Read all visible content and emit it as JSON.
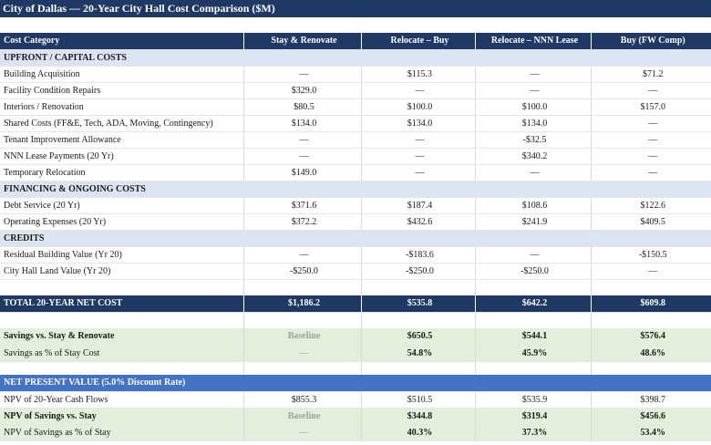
{
  "title": "City of Dallas — 20-Year City Hall Cost Comparison ($M)",
  "columns": [
    "Cost Category",
    "Stay & Renovate",
    "Relocate – Buy",
    "Relocate – NNN Lease",
    "Buy (FW Comp)"
  ],
  "sections": {
    "upfront": "UPFRONT / CAPITAL COSTS",
    "financing": "FINANCING & ONGOING COSTS",
    "credits": "CREDITS",
    "npv": "NET PRESENT VALUE (5.0% Discount Rate)"
  },
  "upfront_rows": [
    {
      "label": "Building Acquisition",
      "v": [
        "—",
        "$115.3",
        "—",
        "$71.2"
      ]
    },
    {
      "label": "Facility Condition Repairs",
      "v": [
        "$329.0",
        "—",
        "—",
        "—"
      ]
    },
    {
      "label": "Interiors / Renovation",
      "v": [
        "$80.5",
        "$100.0",
        "$100.0",
        "$157.0"
      ]
    },
    {
      "label": "Shared Costs (FF&E, Tech, ADA, Moving, Contingency)",
      "v": [
        "$134.0",
        "$134.0",
        "$134.0",
        "—"
      ]
    },
    {
      "label": "Tenant Improvement Allowance",
      "v": [
        "—",
        "—",
        "-$32.5",
        "—"
      ]
    },
    {
      "label": "NNN Lease Payments (20 Yr)",
      "v": [
        "—",
        "—",
        "$340.2",
        "—"
      ]
    },
    {
      "label": "Temporary Relocation",
      "v": [
        "$149.0",
        "—",
        "—",
        "—"
      ]
    }
  ],
  "financing_rows": [
    {
      "label": "Debt Service (20 Yr)",
      "v": [
        "$371.6",
        "$187.4",
        "$108.6",
        "$122.6"
      ]
    },
    {
      "label": "Operating Expenses (20 Yr)",
      "v": [
        "$372.2",
        "$432.6",
        "$241.9",
        "$409.5"
      ]
    }
  ],
  "credit_rows": [
    {
      "label": "Residual Building Value (Yr 20)",
      "v": [
        "—",
        "-$183.6",
        "—",
        "-$150.5"
      ]
    },
    {
      "label": "City Hall Land Value (Yr 20)",
      "v": [
        "-$250.0",
        "-$250.0",
        "-$250.0",
        "—"
      ]
    }
  ],
  "total": {
    "label": "TOTAL 20-YEAR NET COST",
    "v": [
      "$1,186.2",
      "$535.8",
      "$642.2",
      "$609.8"
    ]
  },
  "savings": {
    "label": "Savings vs. Stay & Renovate",
    "v": [
      "Baseline",
      "$650.5",
      "$544.1",
      "$576.4"
    ]
  },
  "savings_pct": {
    "label": "Savings as % of Stay Cost",
    "v": [
      "—",
      "54.8%",
      "45.9%",
      "48.6%"
    ]
  },
  "npv_cash": {
    "label": "NPV of 20-Year Cash Flows",
    "v": [
      "$855.3",
      "$510.5",
      "$535.9",
      "$398.7"
    ]
  },
  "npv_savings": {
    "label": "NPV of Savings vs. Stay",
    "v": [
      "Baseline",
      "$344.8",
      "$319.4",
      "$456.6"
    ]
  },
  "npv_pct": {
    "label": "NPV of Savings as % of Stay",
    "v": [
      "—",
      "40.3%",
      "37.3%",
      "53.4%"
    ]
  }
}
